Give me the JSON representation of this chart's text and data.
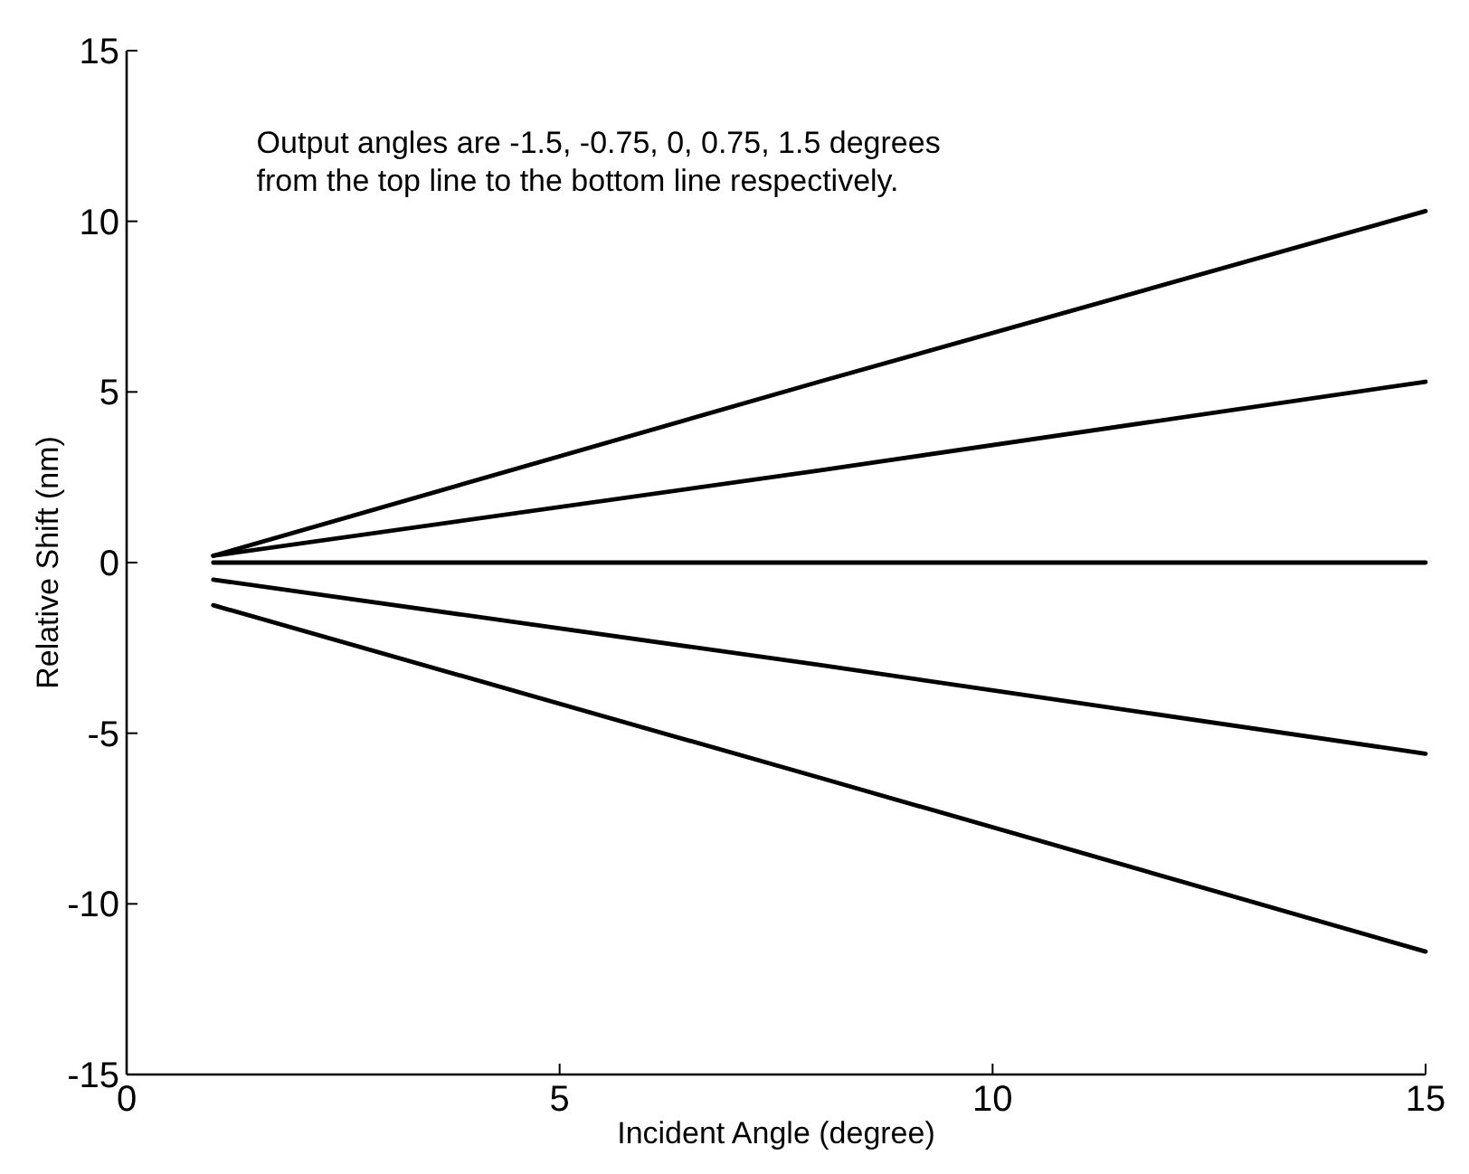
{
  "chart_data": {
    "type": "line",
    "xlabel": "Incident Angle (degree)",
    "ylabel": "Relative Shift (nm)",
    "annotations": [
      "Output angles are -1.5, -0.75, 0, 0.75, 1.5 degrees\nfrom the top line to the bottom line respectively."
    ],
    "x": [
      1,
      8,
      15
    ],
    "series": [
      {
        "color": "#000000",
        "values": [
          0.2,
          5.3,
          10.3
        ]
      },
      {
        "color": "#000000",
        "values": [
          0.2,
          2.7,
          5.3
        ]
      },
      {
        "color": "#000000",
        "values": [
          0,
          0,
          0
        ]
      },
      {
        "color": "#000000",
        "values": [
          -0.5,
          -3.0,
          -5.6
        ]
      },
      {
        "color": "#000000",
        "values": [
          -1.25,
          -6.3,
          -11.4
        ]
      }
    ],
    "xlim": [
      0,
      15
    ],
    "xticks": [
      0,
      5,
      10,
      15
    ],
    "ylim": [
      -15,
      15
    ],
    "yticks": [
      -15,
      -10,
      -5,
      0,
      5,
      10,
      15
    ],
    "grid": false,
    "marker": "none",
    "line_style": "solid"
  }
}
